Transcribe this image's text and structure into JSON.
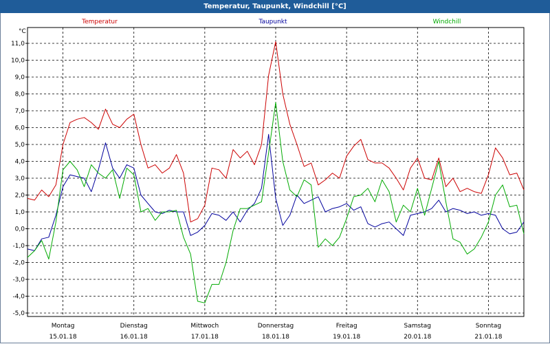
{
  "window": {
    "title": "Temperatur, Taupunkt, Windchill [°C]"
  },
  "chart_data": {
    "type": "line",
    "title": "Temperatur, Taupunkt, Windchill [°C]",
    "ylabel": "°C",
    "ylim": [
      -5.0,
      11.0
    ],
    "y_ticks": [
      "-5,0",
      "-4,0",
      "-3,0",
      "-2,0",
      "-1,0",
      "0,0",
      "1,0",
      "2,0",
      "3,0",
      "4,0",
      "5,0",
      "6,0",
      "7,0",
      "8,0",
      "9,0",
      "10,0",
      "11,0"
    ],
    "x_range": [
      0,
      7
    ],
    "day_labels": [
      {
        "weekday": "Montag",
        "date": "15.01.18"
      },
      {
        "weekday": "Dienstag",
        "date": "16.01.18"
      },
      {
        "weekday": "Mittwoch",
        "date": "17.01.18"
      },
      {
        "weekday": "Donnerstag",
        "date": "18.01.18"
      },
      {
        "weekday": "Freitag",
        "date": "19.01.18"
      },
      {
        "weekday": "Samstag",
        "date": "20.01.18"
      },
      {
        "weekday": "Sonntag",
        "date": "21.01.18"
      }
    ],
    "series": [
      {
        "name": "Temperatur",
        "color": "#cc0000",
        "x": [
          0,
          0.1,
          0.2,
          0.3,
          0.4,
          0.5,
          0.6,
          0.7,
          0.8,
          0.9,
          1.0,
          1.1,
          1.2,
          1.3,
          1.4,
          1.5,
          1.6,
          1.7,
          1.8,
          1.9,
          2.0,
          2.1,
          2.2,
          2.3,
          2.4,
          2.5,
          2.6,
          2.7,
          2.8,
          2.9,
          3.0,
          3.1,
          3.2,
          3.3,
          3.4,
          3.5,
          3.6,
          3.7,
          3.8,
          3.9,
          4.0,
          4.1,
          4.2,
          4.3,
          4.4,
          4.5,
          4.6,
          4.7,
          4.8,
          4.9,
          5.0,
          5.1,
          5.2,
          5.3,
          5.4,
          5.5,
          5.6,
          5.7,
          5.8,
          5.9,
          6.0,
          6.1,
          6.2,
          6.3,
          6.4,
          6.5,
          6.6,
          6.7,
          6.8,
          6.9,
          7.0
        ],
        "values": [
          1.8,
          1.7,
          2.3,
          1.9,
          2.6,
          5.0,
          6.3,
          6.5,
          6.6,
          6.3,
          5.9,
          7.1,
          6.2,
          6.0,
          6.5,
          6.8,
          5.0,
          3.6,
          3.8,
          3.3,
          3.6,
          4.4,
          3.3,
          0.4,
          0.6,
          1.4,
          3.6,
          3.5,
          3.0,
          4.7,
          4.2,
          4.6,
          3.8,
          5.0,
          9.1,
          11.1,
          8.0,
          6.2,
          5.0,
          3.7,
          3.9,
          2.6,
          2.9,
          3.3,
          3.0,
          4.3,
          4.9,
          5.3,
          4.1,
          3.9,
          3.9,
          3.6,
          3.0,
          2.3,
          3.6,
          4.2,
          3.0,
          2.9,
          4.2,
          2.5,
          3.0,
          2.2,
          2.4,
          2.2,
          2.1,
          3.2,
          4.8,
          4.2,
          3.2,
          3.3,
          2.3
        ]
      },
      {
        "name": "Taupunkt",
        "color": "#00009c",
        "x": [
          0,
          0.1,
          0.2,
          0.3,
          0.4,
          0.5,
          0.6,
          0.7,
          0.8,
          0.9,
          1.0,
          1.1,
          1.2,
          1.3,
          1.4,
          1.5,
          1.6,
          1.7,
          1.8,
          1.9,
          2.0,
          2.1,
          2.2,
          2.3,
          2.4,
          2.5,
          2.6,
          2.7,
          2.8,
          2.9,
          3.0,
          3.1,
          3.2,
          3.3,
          3.4,
          3.5,
          3.6,
          3.7,
          3.8,
          3.9,
          4.0,
          4.1,
          4.2,
          4.3,
          4.4,
          4.5,
          4.6,
          4.7,
          4.8,
          4.9,
          5.0,
          5.1,
          5.2,
          5.3,
          5.4,
          5.5,
          5.6,
          5.7,
          5.8,
          5.9,
          6.0,
          6.1,
          6.2,
          6.3,
          6.4,
          6.5,
          6.6,
          6.7,
          6.8,
          6.9,
          7.0
        ],
        "values": [
          -1.2,
          -1.3,
          -0.6,
          -0.5,
          0.8,
          2.5,
          3.2,
          3.1,
          3.0,
          2.2,
          3.5,
          5.1,
          3.6,
          3.0,
          3.8,
          3.6,
          2.0,
          1.5,
          1.0,
          0.9,
          1.1,
          1.0,
          1.0,
          -0.4,
          -0.2,
          0.2,
          0.9,
          0.8,
          0.5,
          1.0,
          0.4,
          1.1,
          1.5,
          2.4,
          5.6,
          1.8,
          0.2,
          0.8,
          2.0,
          1.5,
          1.7,
          1.9,
          1.0,
          1.2,
          1.3,
          1.5,
          1.1,
          1.3,
          0.3,
          0.1,
          0.3,
          0.4,
          0.0,
          -0.4,
          0.8,
          0.9,
          1.0,
          1.2,
          1.7,
          1.0,
          1.2,
          1.1,
          0.9,
          1.0,
          0.8,
          0.9,
          0.8,
          0.0,
          -0.3,
          -0.2,
          0.4
        ]
      },
      {
        "name": "Windchill",
        "color": "#00aa00",
        "x": [
          0,
          0.1,
          0.2,
          0.3,
          0.4,
          0.5,
          0.6,
          0.7,
          0.8,
          0.9,
          1.0,
          1.1,
          1.2,
          1.3,
          1.4,
          1.5,
          1.6,
          1.7,
          1.8,
          1.9,
          2.0,
          2.1,
          2.2,
          2.3,
          2.4,
          2.5,
          2.6,
          2.7,
          2.8,
          2.9,
          3.0,
          3.1,
          3.2,
          3.3,
          3.4,
          3.5,
          3.6,
          3.7,
          3.8,
          3.9,
          4.0,
          4.1,
          4.2,
          4.3,
          4.4,
          4.5,
          4.6,
          4.7,
          4.8,
          4.9,
          5.0,
          5.1,
          5.2,
          5.3,
          5.4,
          5.5,
          5.6,
          5.7,
          5.8,
          5.9,
          6.0,
          6.1,
          6.2,
          6.3,
          6.4,
          6.5,
          6.6,
          6.7,
          6.8,
          6.9,
          7.0
        ],
        "values": [
          -1.7,
          -1.3,
          -0.7,
          -1.8,
          0.4,
          3.5,
          4.0,
          3.5,
          2.5,
          3.8,
          3.3,
          3.0,
          3.5,
          1.8,
          3.6,
          3.2,
          1.0,
          1.2,
          0.5,
          1.0,
          1.0,
          1.1,
          -0.5,
          -1.5,
          -4.3,
          -4.4,
          -3.3,
          -3.3,
          -2.0,
          -0.1,
          1.2,
          1.2,
          1.4,
          1.6,
          4.5,
          7.5,
          4.0,
          2.3,
          1.9,
          2.9,
          2.6,
          -1.1,
          -0.6,
          -1.0,
          -0.5,
          0.6,
          1.9,
          2.0,
          2.4,
          1.6,
          2.9,
          2.2,
          0.4,
          1.4,
          1.0,
          2.4,
          0.8,
          2.4,
          4.0,
          1.6,
          -0.6,
          -0.8,
          -1.5,
          -1.2,
          -0.5,
          0.4,
          2.0,
          2.6,
          1.3,
          1.4,
          -0.3
        ]
      }
    ]
  }
}
